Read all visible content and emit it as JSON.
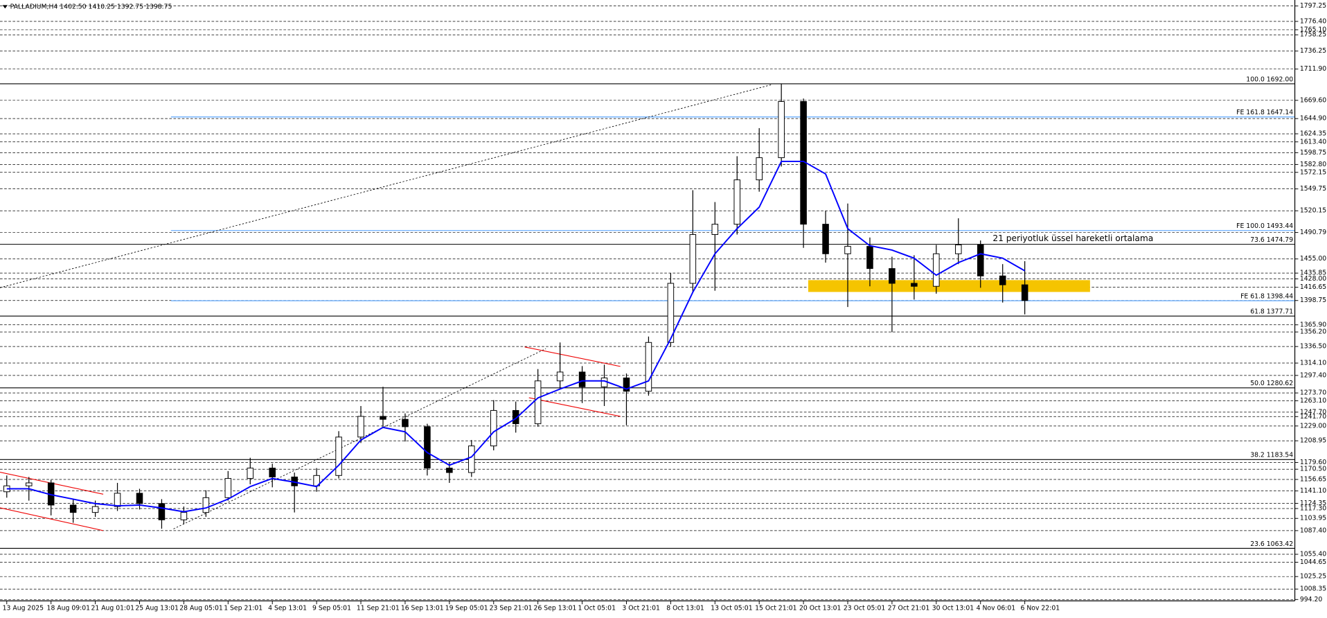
{
  "chart_data": {
    "type": "candlestick",
    "title": "PALLADIUM,H4 1402.50 1410.25 1392.75 1398.75",
    "categories": [
      "13 Aug 2025",
      null,
      "18 Aug 09:01",
      null,
      "21 Aug 01:01",
      null,
      "25 Aug 13:01",
      null,
      "28 Aug 05:01",
      null,
      "1 Sep 21:01",
      null,
      "4 Sep 13:01",
      null,
      "9 Sep 05:01",
      null,
      "11 Sep 21:01",
      null,
      "16 Sep 13:01",
      null,
      "19 Sep 05:01",
      null,
      "23 Sep 21:01",
      null,
      "26 Sep 13:01",
      null,
      "1 Oct 05:01",
      null,
      "3 Oct 21:01",
      null,
      "8 Oct 13:01",
      null,
      "13 Oct 05:01",
      null,
      "15 Oct 21:01",
      null,
      "20 Oct 13:01",
      null,
      "23 Oct 05:01",
      null,
      "27 Oct 21:01",
      null,
      "30 Oct 13:01",
      null,
      "4 Nov 06:01",
      null,
      "6 Nov 22:01"
    ],
    "open": [
      1140,
      1148,
      1152,
      1122,
      1112,
      1120,
      1138,
      1124,
      1102,
      1112,
      1132,
      1158,
      1172,
      1160,
      1148,
      1162,
      1214,
      1242,
      1238,
      1228,
      1172,
      1166,
      1202,
      1250,
      1232,
      1290,
      1302,
      1282,
      1294,
      1276,
      1342,
      1422,
      1488,
      1502,
      1562,
      1592,
      1668,
      1502,
      1462,
      1472,
      1442,
      1422,
      1418,
      1462,
      1474,
      1432,
      1420
    ],
    "high": [
      1162,
      1160,
      1156,
      1130,
      1128,
      1152,
      1144,
      1130,
      1120,
      1142,
      1168,
      1186,
      1178,
      1166,
      1172,
      1222,
      1256,
      1282,
      1246,
      1232,
      1180,
      1210,
      1264,
      1262,
      1306,
      1342,
      1310,
      1312,
      1300,
      1350,
      1436,
      1548,
      1532,
      1594,
      1632,
      1692,
      1672,
      1520,
      1530,
      1484,
      1458,
      1460,
      1474,
      1510,
      1480,
      1448,
      1452
    ],
    "low": [
      1132,
      1128,
      1108,
      1098,
      1106,
      1114,
      1116,
      1090,
      1096,
      1106,
      1128,
      1150,
      1146,
      1112,
      1140,
      1158,
      1206,
      1226,
      1208,
      1162,
      1152,
      1160,
      1196,
      1220,
      1228,
      1280,
      1260,
      1256,
      1230,
      1270,
      1336,
      1410,
      1412,
      1488,
      1546,
      1580,
      1470,
      1450,
      1390,
      1418,
      1356,
      1400,
      1408,
      1448,
      1416,
      1396,
      1380
    ],
    "close": [
      1148,
      1152,
      1122,
      1112,
      1120,
      1138,
      1124,
      1102,
      1112,
      1132,
      1158,
      1172,
      1160,
      1148,
      1162,
      1214,
      1242,
      1238,
      1228,
      1172,
      1166,
      1202,
      1250,
      1232,
      1290,
      1302,
      1282,
      1294,
      1276,
      1342,
      1422,
      1488,
      1502,
      1562,
      1592,
      1668,
      1502,
      1462,
      1472,
      1442,
      1422,
      1418,
      1462,
      1474,
      1432,
      1420,
      1398.75
    ],
    "series": [
      {
        "name": "21 periyotluk üssel hareketli ortalama",
        "color": "#0000ff",
        "values": [
          1144,
          1144,
          1136,
          1130,
          1124,
          1121,
          1122,
          1118,
          1113,
          1118,
          1130,
          1147,
          1158,
          1153,
          1147,
          1176,
          1210,
          1227,
          1221,
          1193,
          1176,
          1187,
          1221,
          1239,
          1267,
          1279,
          1290,
          1290,
          1279,
          1290,
          1347,
          1410,
          1462,
          1496,
          1525,
          1587,
          1587,
          1570,
          1496,
          1473,
          1467,
          1456,
          1433,
          1450,
          1462,
          1456,
          1439
        ]
      }
    ],
    "candle_colors": {
      "up": "#ffffff",
      "down": "#000000",
      "outline": "#000000"
    },
    "ylim": [
      992.4,
      1805.35
    ],
    "yticks": [
      1797.25,
      {
        "value": 1776.4,
        "label": "1776.40"
      },
      {
        "value": 1765.1,
        "label": "1765.10"
      },
      1758.25,
      1736.25,
      {
        "value": 1711.9,
        "label": "1711.90"
      },
      {
        "value": 1669.6,
        "label": "1669.60"
      },
      {
        "value": 1644.9,
        "label": "1644.90"
      },
      1624.35,
      {
        "value": 1613.4,
        "label": "1613.40"
      },
      1598.75,
      {
        "value": 1582.8,
        "label": "1582.80"
      },
      1572.15,
      1549.75,
      1520.15,
      1490.79,
      {
        "value": 1455,
        "label": "1455.00"
      },
      1435.85,
      {
        "value": 1428,
        "label": "1428.00"
      },
      1416.65,
      1398.75,
      {
        "value": 1365.9,
        "label": "1365.90"
      },
      {
        "value": 1356.2,
        "label": "1356.20"
      },
      {
        "value": 1336.5,
        "label": "1336.50"
      },
      {
        "value": 1314.1,
        "label": "1314.10"
      },
      {
        "value": 1297.4,
        "label": "1297.40"
      },
      {
        "value": 1273.7,
        "label": "1273.70"
      },
      {
        "value": 1263.1,
        "label": "1263.10"
      },
      {
        "value": 1247.7,
        "label": "1247.70"
      },
      {
        "value": 1241.7,
        "label": "1241.70"
      },
      {
        "value": 1229,
        "label": "1229.00"
      },
      1208.95,
      {
        "value": 1179.6,
        "label": "1179.60"
      },
      {
        "value": 1170.5,
        "label": "1170.50"
      },
      1156.65,
      {
        "value": 1141.1,
        "label": "1141.10"
      },
      1124.35,
      {
        "value": 1117.3,
        "label": "1117.30"
      },
      1103.95,
      {
        "value": 1087.4,
        "label": "1087.40"
      },
      {
        "value": 1055.4,
        "label": "1055.40"
      },
      1044.65,
      1025.25,
      1008.35,
      {
        "value": 994.2,
        "label": "994.20"
      }
    ],
    "grid": true,
    "fibo_levels": [
      {
        "label": "100.0 1692.00",
        "value": 1692
      },
      {
        "label": "73.6 1474.79",
        "value": 1474.79
      },
      {
        "label": "61.8 1377.71",
        "value": 1377.71
      },
      {
        "label": "50.0 1280.62",
        "value": 1280.62
      },
      {
        "label": "38.2 1183.54",
        "value": 1183.54
      },
      {
        "label": "23.6 1063.42",
        "value": 1063.42
      }
    ],
    "fibo_color": "#000000",
    "expansion_levels": [
      {
        "label": "FE 161.8 1647.14",
        "value": 1647.14
      },
      {
        "label": "FE 100.0 1493.44",
        "value": 1493.44
      },
      {
        "label": "FE 61.8 1398.44",
        "value": 1398.44
      }
    ],
    "expansion_color": "#4a9eff"
  }
}
